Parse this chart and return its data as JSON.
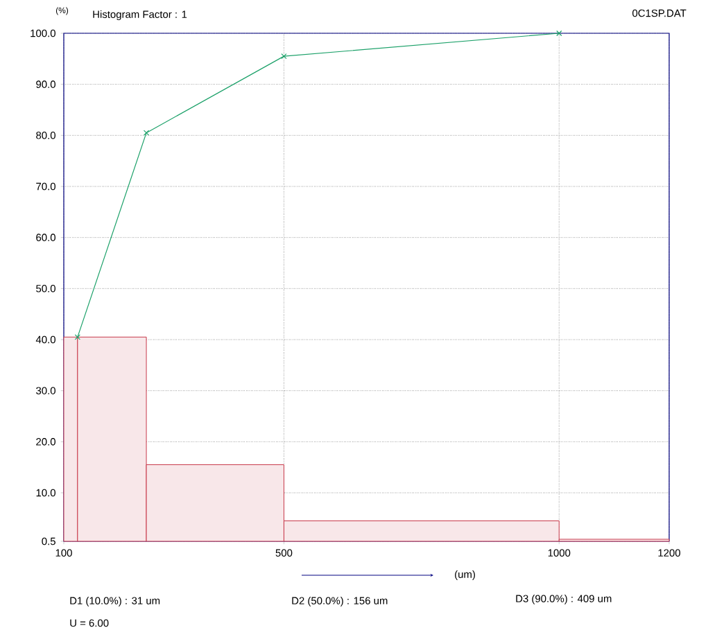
{
  "chart_data": {
    "type": "histogram",
    "title": "Histogram Factor : 1",
    "ylabel": "(%)",
    "xlabel": "(um)",
    "bins": [
      100,
      125,
      250,
      500,
      1000,
      1200
    ],
    "values": [
      40.5,
      40.5,
      15.5,
      4.5,
      0.9
    ],
    "color": "#c8384a",
    "series": [
      {
        "type": "line",
        "color": "#1aa068",
        "x": [
          125,
          250,
          500,
          1000
        ],
        "values": [
          40.5,
          80.5,
          95.5,
          100
        ],
        "marker": "cross"
      }
    ],
    "xlim": [
      100,
      1200
    ],
    "xticks": [
      100,
      500,
      1000,
      1200
    ],
    "ylim": [
      0.5,
      100
    ],
    "yticks": [
      0.5,
      {
        "value": 10,
        "label": "10.0"
      },
      {
        "value": 20,
        "label": "20.0"
      },
      {
        "value": 30,
        "label": "30.0"
      },
      {
        "value": 40,
        "label": "40.0"
      },
      {
        "value": 50,
        "label": "50.0"
      },
      {
        "value": 60,
        "label": "60.0"
      },
      {
        "value": 70,
        "label": "70.0"
      },
      {
        "value": 80,
        "label": "80.0"
      },
      {
        "value": 90,
        "label": "90.0"
      },
      {
        "value": 100,
        "label": "100.0"
      }
    ],
    "grid": true,
    "annotations": [
      "0C1SP.DAT",
      "D1 (10.0%) :  31 um",
      "D2 (50.0%) :  156 um",
      "D3 (90.0%) :  409 um",
      "U =  6.00"
    ]
  }
}
